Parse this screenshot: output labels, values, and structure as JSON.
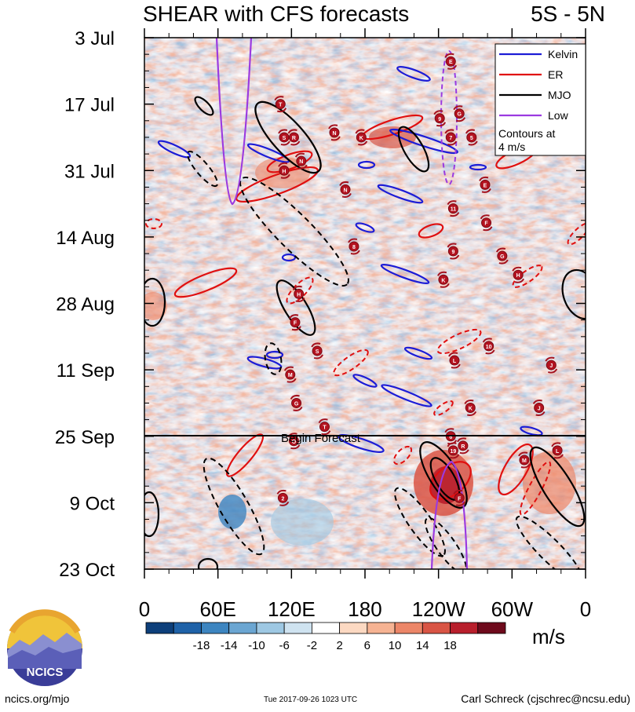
{
  "header": {
    "title": "SHEAR with CFS forecasts",
    "region": "5S - 5N"
  },
  "chart_data": {
    "type": "heatmap",
    "title": "SHEAR with CFS forecasts",
    "subtitle": "5S - 5N",
    "y_tick_labels": [
      "3 Jul",
      "17 Jul",
      "31 Jul",
      "14 Aug",
      "28 Aug",
      "11 Sep",
      "25 Sep",
      "9 Oct",
      "23 Oct"
    ],
    "x_tick_labels": [
      "0",
      "60E",
      "120E",
      "180",
      "120W",
      "60W",
      "0"
    ],
    "x_range_deg_east": [
      0,
      360
    ],
    "forecast_label": "Begin Forecast",
    "forecast_start": "25 Sep",
    "legend": [
      {
        "label": "Kelvin",
        "color": "#1c1cd6"
      },
      {
        "label": "ER",
        "color": "#e01010"
      },
      {
        "label": "MJO",
        "color": "#000000"
      },
      {
        "label": "Low",
        "color": "#9b3ae0"
      }
    ],
    "legend_note": [
      "Contours at",
      "4 m/s"
    ],
    "colorbar": {
      "unit": "m/s",
      "tick_labels": [
        "-18",
        "-14",
        "-10",
        "-6",
        "-2",
        "2",
        "6",
        "10",
        "14",
        "18"
      ],
      "colors": [
        "#0d3f7a",
        "#1f62a8",
        "#3d85c0",
        "#6ba6d2",
        "#9ec8e3",
        "#cfe3f0",
        "#ffffff",
        "#fcd9c2",
        "#f6b393",
        "#ec8668",
        "#d95545",
        "#b81f2c",
        "#6e0a1c"
      ]
    },
    "storm_markers": [
      {
        "letter": "E",
        "lon": 250,
        "day": 5
      },
      {
        "letter": "G",
        "lon": 257,
        "day": 16
      },
      {
        "letter": "9",
        "lon": 241,
        "day": 17
      },
      {
        "letter": "5",
        "lon": 267,
        "day": 21
      },
      {
        "letter": "T",
        "lon": 111,
        "day": 14
      },
      {
        "letter": "S",
        "lon": 114,
        "day": 21
      },
      {
        "letter": "R",
        "lon": 122,
        "day": 21
      },
      {
        "letter": "N",
        "lon": 155,
        "day": 20
      },
      {
        "letter": "K",
        "lon": 177,
        "day": 21
      },
      {
        "letter": "7",
        "lon": 250,
        "day": 21
      },
      {
        "letter": "N",
        "lon": 128,
        "day": 26
      },
      {
        "letter": "H",
        "lon": 114,
        "day": 28
      },
      {
        "letter": "E",
        "lon": 278,
        "day": 31
      },
      {
        "letter": "N",
        "lon": 164,
        "day": 32
      },
      {
        "letter": "11",
        "lon": 252,
        "day": 36
      },
      {
        "letter": "F",
        "lon": 279,
        "day": 39
      },
      {
        "letter": "8",
        "lon": 171,
        "day": 44
      },
      {
        "letter": "9",
        "lon": 252,
        "day": 45
      },
      {
        "letter": "G",
        "lon": 292,
        "day": 46
      },
      {
        "letter": "K",
        "lon": 244,
        "day": 51
      },
      {
        "letter": "H",
        "lon": 305,
        "day": 50
      },
      {
        "letter": "H",
        "lon": 126,
        "day": 54
      },
      {
        "letter": "F",
        "lon": 123,
        "day": 60
      },
      {
        "letter": "S",
        "lon": 141,
        "day": 66
      },
      {
        "letter": "10",
        "lon": 281,
        "day": 65
      },
      {
        "letter": "L",
        "lon": 253,
        "day": 68
      },
      {
        "letter": "M",
        "lon": 119,
        "day": 71
      },
      {
        "letter": "J",
        "lon": 332,
        "day": 69
      },
      {
        "letter": "G",
        "lon": 124,
        "day": 77
      },
      {
        "letter": "K",
        "lon": 266,
        "day": 78
      },
      {
        "letter": "J",
        "lon": 322,
        "day": 78
      },
      {
        "letter": "T",
        "lon": 147,
        "day": 82
      },
      {
        "letter": "O",
        "lon": 122,
        "day": 85
      },
      {
        "letter": "6",
        "lon": 250,
        "day": 84
      },
      {
        "letter": "R",
        "lon": 260,
        "day": 86
      },
      {
        "letter": "19",
        "lon": 252,
        "day": 87
      },
      {
        "letter": "M",
        "lon": 310,
        "day": 89
      },
      {
        "letter": "L",
        "lon": 337,
        "day": 87
      },
      {
        "letter": "2",
        "lon": 113,
        "day": 97
      },
      {
        "letter": "F",
        "lon": 257,
        "day": 97
      }
    ]
  },
  "logo": {
    "text": "NCICS"
  },
  "footer": {
    "left": "ncics.org/mjo",
    "middle": "Tue 2017-09-26 1023 UTC",
    "right": "Carl Schreck (cjschrec@ncsu.edu)"
  }
}
